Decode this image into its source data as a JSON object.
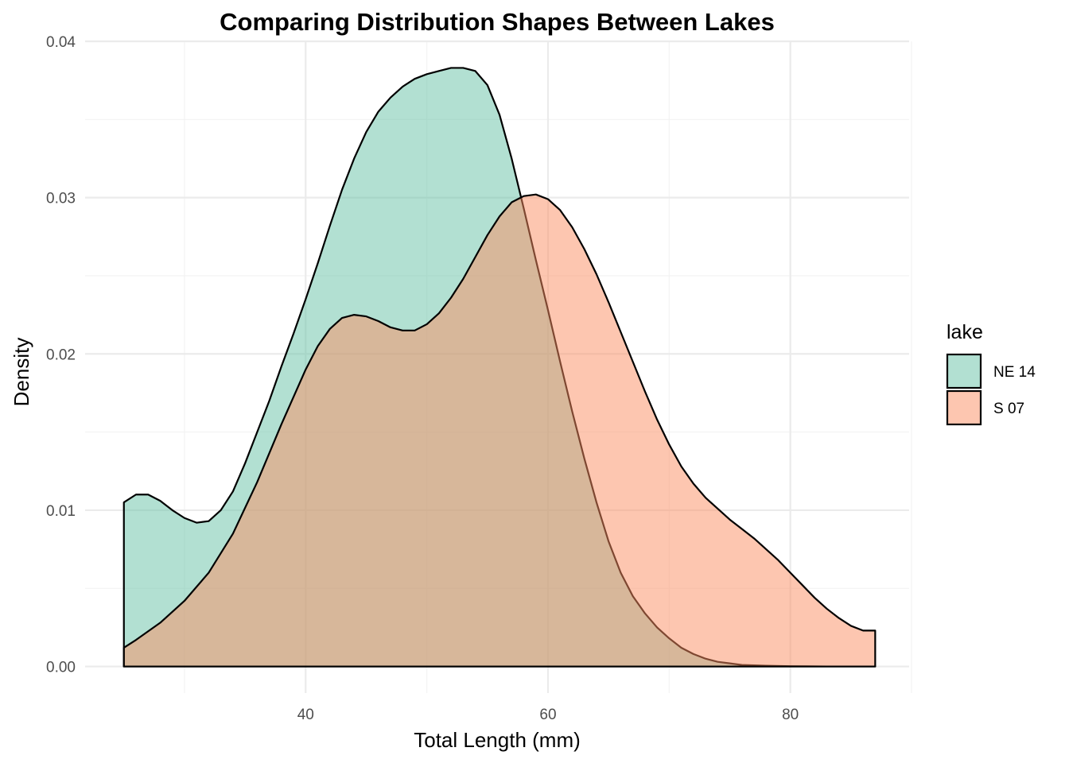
{
  "chart_data": {
    "type": "area",
    "title": "Comparing Distribution Shapes Between Lakes",
    "xlabel": "Total Length (mm)",
    "ylabel": "Density",
    "xlim": [
      21.8,
      89.8
    ],
    "ylim": [
      -0.0017,
      0.04
    ],
    "x_major_ticks": [
      40,
      60,
      80
    ],
    "x_minor_ticks": [
      30,
      50,
      70,
      90
    ],
    "y_major_ticks": [
      0.0,
      0.01,
      0.02,
      0.03,
      0.04
    ],
    "y_minor_ticks": [
      0.005,
      0.015,
      0.025,
      0.035
    ],
    "x_tick_labels": [
      "40",
      "60",
      "80"
    ],
    "y_tick_labels": [
      "0.00",
      "0.01",
      "0.02",
      "0.03",
      "0.04"
    ],
    "grid": true,
    "legend": {
      "title": "lake",
      "placement": "right"
    },
    "series": [
      {
        "name": "NE 14",
        "color": "#66c2a5",
        "points": [
          [
            25,
            0.0105
          ],
          [
            26,
            0.011
          ],
          [
            27,
            0.011
          ],
          [
            28,
            0.0106
          ],
          [
            29,
            0.01
          ],
          [
            30,
            0.0095
          ],
          [
            31,
            0.0092
          ],
          [
            32,
            0.0093
          ],
          [
            33,
            0.01
          ],
          [
            34,
            0.0112
          ],
          [
            35,
            0.013
          ],
          [
            36,
            0.015
          ],
          [
            37,
            0.017
          ],
          [
            38,
            0.0192
          ],
          [
            39,
            0.0213
          ],
          [
            40,
            0.0235
          ],
          [
            41,
            0.0258
          ],
          [
            42,
            0.0282
          ],
          [
            43,
            0.0305
          ],
          [
            44,
            0.0325
          ],
          [
            45,
            0.0342
          ],
          [
            46,
            0.0355
          ],
          [
            47,
            0.0364
          ],
          [
            48,
            0.0371
          ],
          [
            49,
            0.0376
          ],
          [
            50,
            0.0379
          ],
          [
            51,
            0.0381
          ],
          [
            52,
            0.0383
          ],
          [
            53,
            0.0383
          ],
          [
            54,
            0.0381
          ],
          [
            55,
            0.0372
          ],
          [
            56,
            0.0353
          ],
          [
            57,
            0.0325
          ],
          [
            58,
            0.0293
          ],
          [
            59,
            0.026
          ],
          [
            60,
            0.0228
          ],
          [
            61,
            0.0195
          ],
          [
            62,
            0.0163
          ],
          [
            63,
            0.0133
          ],
          [
            64,
            0.0105
          ],
          [
            65,
            0.008
          ],
          [
            66,
            0.006
          ],
          [
            67,
            0.0045
          ],
          [
            68,
            0.0034
          ],
          [
            69,
            0.0025
          ],
          [
            70,
            0.0018
          ],
          [
            71,
            0.0012
          ],
          [
            72,
            0.0008
          ],
          [
            73,
            0.0005
          ],
          [
            74,
            0.0003
          ],
          [
            75,
            0.0002
          ],
          [
            76,
            0.0001
          ],
          [
            78,
            5e-05
          ],
          [
            80,
            2e-05
          ],
          [
            83,
            0.0
          ],
          [
            87,
            0.0
          ]
        ]
      },
      {
        "name": "S 07",
        "color": "#fc8d62",
        "points": [
          [
            25,
            0.0012
          ],
          [
            26,
            0.0017
          ],
          [
            28,
            0.0028
          ],
          [
            30,
            0.0042
          ],
          [
            32,
            0.006
          ],
          [
            34,
            0.0085
          ],
          [
            36,
            0.0118
          ],
          [
            38,
            0.0155
          ],
          [
            40,
            0.019
          ],
          [
            41,
            0.0205
          ],
          [
            42,
            0.0216
          ],
          [
            43,
            0.0223
          ],
          [
            44,
            0.0225
          ],
          [
            45,
            0.0224
          ],
          [
            46,
            0.0221
          ],
          [
            47,
            0.0217
          ],
          [
            48,
            0.0215
          ],
          [
            49,
            0.0215
          ],
          [
            50,
            0.0219
          ],
          [
            51,
            0.0226
          ],
          [
            52,
            0.0236
          ],
          [
            53,
            0.0248
          ],
          [
            54,
            0.0262
          ],
          [
            55,
            0.0276
          ],
          [
            56,
            0.0288
          ],
          [
            57,
            0.0297
          ],
          [
            58,
            0.0301
          ],
          [
            59,
            0.0302
          ],
          [
            60,
            0.0299
          ],
          [
            61,
            0.0292
          ],
          [
            62,
            0.0281
          ],
          [
            63,
            0.0267
          ],
          [
            64,
            0.0251
          ],
          [
            65,
            0.0233
          ],
          [
            66,
            0.0214
          ],
          [
            67,
            0.0195
          ],
          [
            68,
            0.0176
          ],
          [
            69,
            0.0158
          ],
          [
            70,
            0.0142
          ],
          [
            71,
            0.0128
          ],
          [
            72,
            0.0117
          ],
          [
            73,
            0.0108
          ],
          [
            74,
            0.0101
          ],
          [
            75,
            0.0094
          ],
          [
            76,
            0.0088
          ],
          [
            77,
            0.0082
          ],
          [
            78,
            0.0075
          ],
          [
            79,
            0.0068
          ],
          [
            80,
            0.006
          ],
          [
            81,
            0.0052
          ],
          [
            82,
            0.0044
          ],
          [
            83,
            0.0037
          ],
          [
            84,
            0.0031
          ],
          [
            85,
            0.0026
          ],
          [
            86,
            0.0023
          ],
          [
            87,
            0.0023
          ]
        ]
      }
    ]
  }
}
